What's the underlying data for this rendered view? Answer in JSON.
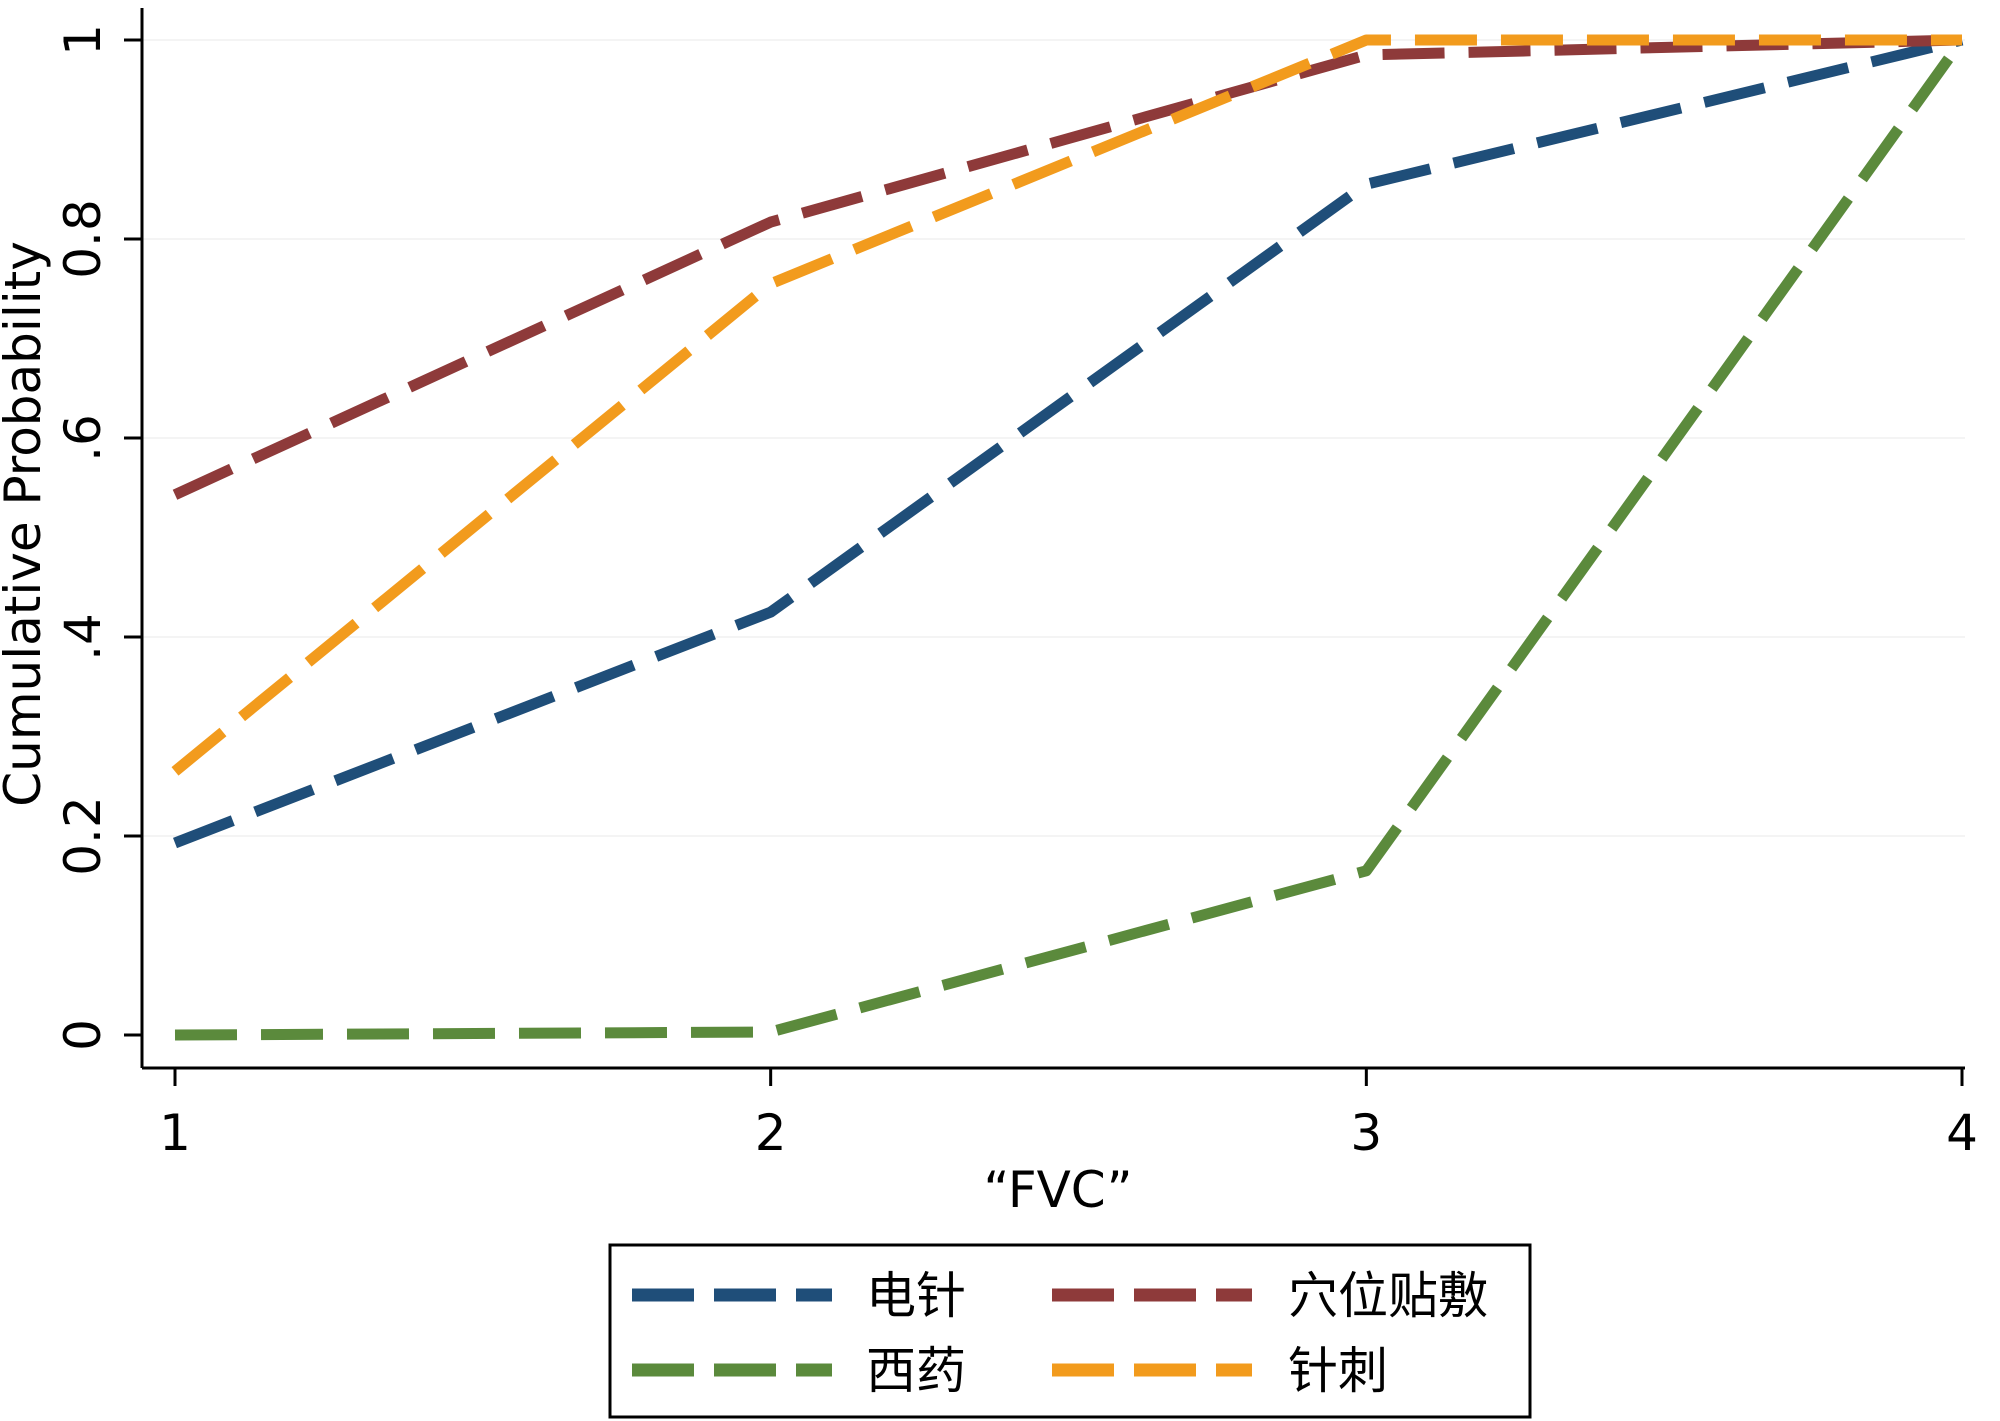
{
  "chart_data": {
    "type": "line",
    "title": "",
    "xlabel": "“FVC”",
    "ylabel": "Cumulative Probability",
    "x": [
      1,
      2,
      3,
      4
    ],
    "xlim": [
      1,
      4
    ],
    "ylim": [
      0,
      1
    ],
    "xticks": [
      1,
      2,
      3,
      4
    ],
    "xtick_labels": [
      "1",
      "2",
      "3",
      "4"
    ],
    "yticks": [
      0,
      0.2,
      0.4,
      0.6,
      0.8,
      1
    ],
    "ytick_labels": [
      "0",
      "0.2",
      ".4",
      ".6",
      "0.8",
      "1"
    ],
    "grid": false,
    "legend_position": "bottom",
    "series": [
      {
        "name": "电针",
        "color": "#1f4e79",
        "values": [
          0.193,
          0.425,
          0.855,
          1.0
        ]
      },
      {
        "name": "穴位贴敷",
        "color": "#8e3a3a",
        "values": [
          0.543,
          0.817,
          0.985,
          1.0
        ]
      },
      {
        "name": "西药",
        "color": "#5b8a3c",
        "values": [
          0.0,
          0.003,
          0.165,
          1.0
        ]
      },
      {
        "name": "针刺",
        "color": "#f29b1d",
        "values": [
          0.265,
          0.755,
          1.0,
          1.0
        ]
      }
    ]
  }
}
